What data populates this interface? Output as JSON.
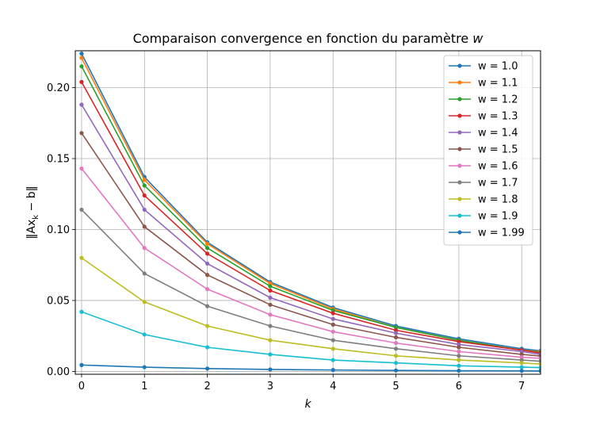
{
  "chart_data": {
    "type": "line",
    "title": "Comparaison convergence en fonction du paramètre ",
    "title_symbol": "w",
    "xlabel": "k",
    "ylabel_parts": [
      "‖Ax",
      "k",
      " − b‖"
    ],
    "xlim": [
      -0.1,
      7.3
    ],
    "ylim": [
      -0.002,
      0.226
    ],
    "x_ticks": [
      0,
      1,
      2,
      3,
      4,
      5,
      6,
      7
    ],
    "x_tick_labels": [
      "0",
      "1",
      "2",
      "3",
      "4",
      "5",
      "6",
      "7"
    ],
    "y_ticks": [
      0.0,
      0.05,
      0.1,
      0.15,
      0.2
    ],
    "y_tick_labels": [
      "0.00",
      "0.05",
      "0.10",
      "0.15",
      "0.20"
    ],
    "grid": true,
    "legend_position": "top-right",
    "x": [
      0,
      1,
      2,
      3,
      4,
      5,
      6,
      7,
      7.3
    ],
    "series": [
      {
        "name": "w = 1.0",
        "color": "#1f77b4",
        "values": [
          0.224,
          0.137,
          0.091,
          0.063,
          0.045,
          0.032,
          0.023,
          0.016,
          0.0145
        ]
      },
      {
        "name": "w = 1.1",
        "color": "#ff7f0e",
        "values": [
          0.221,
          0.135,
          0.09,
          0.062,
          0.044,
          0.031,
          0.022,
          0.015,
          0.014
        ]
      },
      {
        "name": "w = 1.2",
        "color": "#2ca02c",
        "values": [
          0.215,
          0.131,
          0.087,
          0.06,
          0.043,
          0.031,
          0.022,
          0.015,
          0.0135
        ]
      },
      {
        "name": "w = 1.3",
        "color": "#d62728",
        "values": [
          0.204,
          0.124,
          0.083,
          0.057,
          0.041,
          0.029,
          0.021,
          0.015,
          0.013
        ]
      },
      {
        "name": "w = 1.4",
        "color": "#9467bd",
        "values": [
          0.188,
          0.114,
          0.076,
          0.052,
          0.037,
          0.027,
          0.019,
          0.014,
          0.012
        ]
      },
      {
        "name": "w = 1.5",
        "color": "#8c564b",
        "values": [
          0.168,
          0.102,
          0.068,
          0.047,
          0.033,
          0.024,
          0.017,
          0.012,
          0.0108
        ]
      },
      {
        "name": "w = 1.6",
        "color": "#e377c2",
        "values": [
          0.143,
          0.087,
          0.058,
          0.04,
          0.028,
          0.02,
          0.014,
          0.01,
          0.0092
        ]
      },
      {
        "name": "w = 1.7",
        "color": "#7f7f7f",
        "values": [
          0.114,
          0.069,
          0.046,
          0.032,
          0.022,
          0.016,
          0.011,
          0.008,
          0.0072
        ]
      },
      {
        "name": "w = 1.8",
        "color": "#bcbd22",
        "values": [
          0.08,
          0.049,
          0.032,
          0.022,
          0.016,
          0.011,
          0.008,
          0.006,
          0.0052
        ]
      },
      {
        "name": "w = 1.9",
        "color": "#17becf",
        "values": [
          0.042,
          0.026,
          0.017,
          0.012,
          0.008,
          0.006,
          0.004,
          0.003,
          0.0027
        ]
      },
      {
        "name": "w = 1.99",
        "color": "#1f77b4",
        "values": [
          0.0045,
          0.003,
          0.002,
          0.0014,
          0.001,
          0.0007,
          0.0005,
          0.0004,
          0.00035
        ]
      }
    ]
  }
}
